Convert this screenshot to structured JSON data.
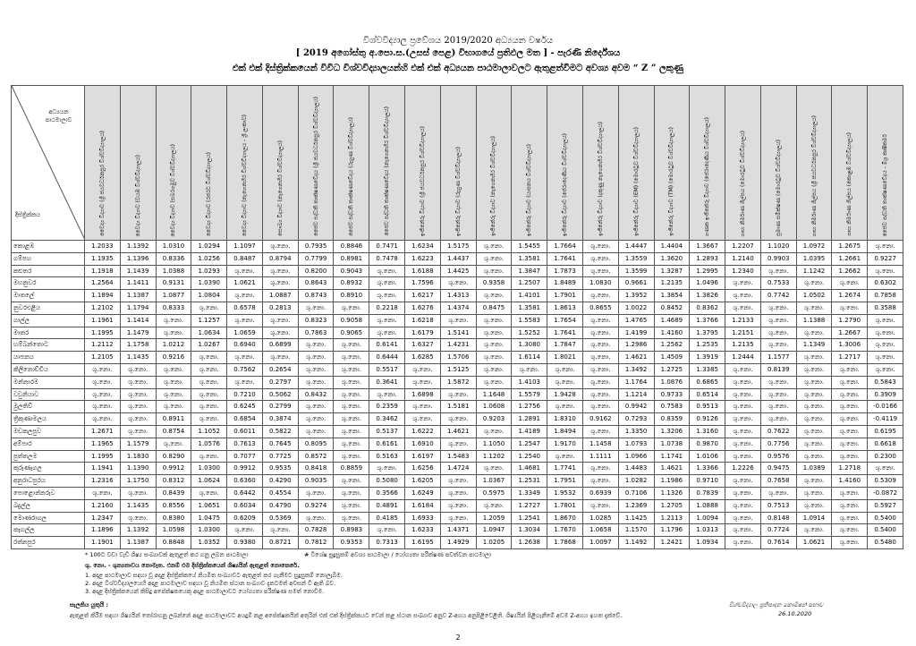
{
  "header": {
    "title": "විශ්වවිද්‍යාල ප්‍රවේශය 2019/2020 අධ්‍යයන වර්ෂය",
    "subtitle": "[ 2019 අගෝස්තු අ.පො.ස.(උසස් පෙළ) විභාගයේ ප්‍රතිඵල මත ] - පැරණි නිර්දේශය",
    "heading": "එක් එක් දිස්ත්‍රික්කයෙන් විවිධ විශ්වවිද්‍යාලයන්හි එක් එක් අධ්‍යයන පාඨමාලාවලට ඇතුළත්වීමට අවශ්‍ය අවම “ Z ” ලකුණු"
  },
  "table": {
    "corner": {
      "course": "අධ්‍යයන පාඨමාලාව",
      "district": "දිස්ත්‍රික්කය"
    },
    "columns": [
      "වෛද්‍ය විද්‍යාව (ශ්‍රී ජයවර්ධනපුර විශ්වවිද්‍යාලය)",
      "වෛද්‍ය විද්‍යාව (වයඹ විශ්වවිද්‍යාලය)",
      "වෛද්‍ය විද්‍යාව (සබරගමුව විශ්වවිද්‍යාලය)",
      "වෛද්‍ය විද්‍යාව (රජරට විශ්වවිද්‍යාලය)",
      "වෛද්‍ය විද්‍යාව (නැගෙනහිර විශ්වවිද්‍යාලය - ශ්‍රී ලංකාව)",
      "සෞඛ්‍ය විද්‍යාව (නැගෙනහිර විශ්වවිද්‍යාලය)",
      "ජෛව පද්ධති තාක්ෂණවේදය (ශ්‍රී ජයවර්ධනපුර විශ්වවිද්‍යාලය)",
      "ජෛව පද්ධති තාක්ෂණවේදය (රුහුණ විශ්වවිද්‍යාලය)",
      "ජෛව පද්ධති තාක්ෂණවේදය (නැගෙනහිර විශ්වවිද්‍යාලය)",
      "ඉංජිනේරු විද්‍යාව (ශ්‍රී ජයවර්ධනපුර විශ්වවිද්‍යාලය)",
      "ඉංජිනේරු විද්‍යාව (රුහුණ විශ්වවිද්‍යාලය)",
      "ඉංජිනේරු විද්‍යාව (නැගෙනහිර විශ්වවිද්‍යාලය)",
      "ඉංජිනේරු විද්‍යාව (යාපනය විශ්වවිද්‍යාලය)",
      "ඉංජිනේරු විද්‍යාව (පේරාදෙණිය විශ්වවිද්‍යාලය)",
      "ඉංජිනේරු විද්‍යාව (දකුණු නැගෙනහිර විශ්වවිද්‍යාලය)",
      "ඉංජිනේරු විද්‍යාව (EM) (මොරටුව විශ්වවිද්‍යාලය)",
      "ඉංජිනේරු විද්‍යාව (TM) (මොරටුව විශ්වවිද්‍යාලය)",
      "ගණක ඉංජිනේරු විද්‍යාව (පේරාදෙණිය විශ්වවිද්‍යාලය)",
      "ගෘහ නිර්මාණ ශිල්පය (මොරටුව විශ්වවිද්‍යාලය)",
      "ප්‍රමාණ සමීක්ෂණ (මොරටුව විශ්වවිද්‍යාලය)",
      "ගෘහ නිර්මාණ ශිල්පය (ශ්‍රී ජයවර්ධනපුර විශ්වවිද්‍යාලය)",
      "ගෘහ නිර්මාණ ශිල්පය (කොළඹ විශ්වවිද්‍යාලය)",
      "ජෛව පද්ධති තාක්ෂණවේදය - මිශ්‍ර කෘෂිකර්ම"
    ],
    "rows": [
      {
        "district": "කොළඹ",
        "values": [
          "1.2033",
          "1.1392",
          "1.0310",
          "1.0294",
          "1.1097",
          "ශු.නො.",
          "0.7935",
          "0.8846",
          "0.7471",
          "1.6234",
          "1.5175",
          "ශු.නො.",
          "1.5455",
          "1.7664",
          "ශු.නො.",
          "1.4447",
          "1.4404",
          "1.3667",
          "1.2207",
          "1.1020",
          "1.0972",
          "1.2675",
          "ශු.නො."
        ]
      },
      {
        "district": "ගම්පහ",
        "values": [
          "1.1935",
          "1.1396",
          "0.8336",
          "1.0256",
          "0.8487",
          "0.8794",
          "0.7799",
          "0.8981",
          "0.7478",
          "1.6223",
          "1.4437",
          "ශු.නො.",
          "1.3581",
          "1.7641",
          "ශු.නො.",
          "1.3559",
          "1.3620",
          "1.2893",
          "1.2140",
          "0.9903",
          "1.0395",
          "1.2661",
          "0.9227"
        ]
      },
      {
        "district": "කළුතර",
        "values": [
          "1.1918",
          "1.1439",
          "1.0388",
          "1.0293",
          "ශු.නො.",
          "ශු.නො.",
          "0.8200",
          "0.9043",
          "ශු.නො.",
          "1.6188",
          "1.4425",
          "ශු.නො.",
          "1.3847",
          "1.7873",
          "ශු.නො.",
          "1.3599",
          "1.3287",
          "1.2995",
          "1.2340",
          "ශු.නො.",
          "1.1242",
          "1.2662",
          "ශු.නො."
        ]
      },
      {
        "district": "මහනුවර",
        "values": [
          "1.2564",
          "1.1411",
          "0.9131",
          "1.0390",
          "1.0621",
          "ශු.නො.",
          "0.8643",
          "0.8932",
          "ශු.නො.",
          "1.7596",
          "ශු.නො.",
          "0.9358",
          "1.2507",
          "1.8489",
          "1.0830",
          "0.9661",
          "1.2135",
          "1.0496",
          "ශු.නො.",
          "0.7533",
          "ශු.නො.",
          "ශු.නො.",
          "0.6302"
        ]
      },
      {
        "district": "මාතලේ",
        "values": [
          "1.1894",
          "1.1387",
          "1.0877",
          "1.0804",
          "ශු.නො.",
          "1.0887",
          "0.8743",
          "0.8910",
          "ශු.නො.",
          "1.6217",
          "1.4313",
          "ශු.නො.",
          "1.4101",
          "1.7901",
          "ශු.නො.",
          "1.3952",
          "1.3854",
          "1.3826",
          "ශු.නො.",
          "0.7742",
          "1.0502",
          "1.2674",
          "0.7858"
        ]
      },
      {
        "district": "නුවරඑළිය",
        "values": [
          "1.2102",
          "1.1794",
          "0.8333",
          "ශු.නො.",
          "0.6578",
          "0.2813",
          "ශු.නො.",
          "ශු.නො.",
          "0.2218",
          "1.6276",
          "1.4374",
          "0.8475",
          "1.3581",
          "1.8613",
          "0.8655",
          "1.0022",
          "0.8452",
          "0.8362",
          "ශු.නො.",
          "ශු.නො.",
          "ශු.නො.",
          "ශු.නො.",
          "0.3588"
        ]
      },
      {
        "district": "ගාල්ල",
        "values": [
          "1.1961",
          "1.1414",
          "ශු.නො.",
          "1.1257",
          "ශු.නො.",
          "ශු.නො.",
          "0.8323",
          "0.9058",
          "ශු.නො.",
          "1.6218",
          "ශු.නො.",
          "ශු.නො.",
          "1.5583",
          "1.7654",
          "ශු.නො.",
          "1.4765",
          "1.4689",
          "1.3766",
          "1.2133",
          "ශු.නො.",
          "1.1388",
          "1.2790",
          "ශු.නො."
        ]
      },
      {
        "district": "මාතර",
        "values": [
          "1.1995",
          "1.1479",
          "ශු.නො.",
          "1.0634",
          "1.0659",
          "ශු.නො.",
          "0.7863",
          "0.9065",
          "ශු.නො.",
          "1.6179",
          "1.5141",
          "ශු.නො.",
          "1.5252",
          "1.7641",
          "ශු.නො.",
          "1.4199",
          "1.4160",
          "1.3795",
          "1.2151",
          "ශු.නො.",
          "ශු.නො.",
          "1.2667",
          "ශු.නො."
        ]
      },
      {
        "district": "හම්බන්තොට",
        "values": [
          "1.2112",
          "1.1758",
          "1.0212",
          "1.0267",
          "0.6940",
          "0.6899",
          "ශු.නො.",
          "ශු.නො.",
          "0.6141",
          "1.6327",
          "1.4231",
          "ශු.නො.",
          "1.3080",
          "1.7847",
          "ශු.නො.",
          "1.2986",
          "1.2562",
          "1.2535",
          "1.2135",
          "ශු.නො.",
          "1.1349",
          "1.3006",
          "ශු.නො."
        ]
      },
      {
        "district": "යාපනය",
        "values": [
          "1.2105",
          "1.1435",
          "0.9216",
          "ශු.නො.",
          "ශු.නො.",
          "ශු.නො.",
          "ශු.නො.",
          "ශු.නො.",
          "0.6444",
          "1.6285",
          "1.5706",
          "ශු.නො.",
          "1.6114",
          "1.8021",
          "ශු.නො.",
          "1.4621",
          "1.4509",
          "1.3919",
          "1.2444",
          "1.1577",
          "ශු.නො.",
          "1.2717",
          "ශු.නො."
        ]
      },
      {
        "district": "කිලිනොච්චිය",
        "values": [
          "ශු.නො.",
          "ශු.නො.",
          "ශු.නො.",
          "ශු.නො.",
          "0.7562",
          "0.2654",
          "ශු.නො.",
          "ශු.නො.",
          "0.5517",
          "ශු.නො.",
          "1.5125",
          "ශු.නො.",
          "ශු.නො.",
          "ශු.නො.",
          "ශු.නො.",
          "1.3492",
          "1.2725",
          "1.3385",
          "ශු.නො.",
          "0.8139",
          "ශු.නො.",
          "ශු.නො.",
          "ශු.නො."
        ]
      },
      {
        "district": "මන්නාරම",
        "values": [
          "ශු.නො.",
          "ශු.නො.",
          "ශු.නො.",
          "ශු.නො.",
          "ශු.නො.",
          "0.2797",
          "ශු.නො.",
          "ශු.නො.",
          "0.3641",
          "ශු.නො.",
          "1.5872",
          "ශු.නො.",
          "1.4103",
          "ශු.නො.",
          "ශු.නො.",
          "1.1764",
          "1.0876",
          "0.6865",
          "ශු.නො.",
          "ශු.නො.",
          "ශු.නො.",
          "ශු.නො.",
          "0.5843"
        ]
      },
      {
        "district": "වවුනියාව",
        "values": [
          "ශු.නො.",
          "ශු.නො.",
          "ශු.නො.",
          "ශු.නො.",
          "0.7210",
          "0.5062",
          "0.8432",
          "ශු.නො.",
          "ශු.නො.",
          "1.6898",
          "ශු.නො.",
          "1.1648",
          "1.5579",
          "1.9428",
          "ශු.නො.",
          "1.1214",
          "0.9733",
          "0.6514",
          "ශු.නො.",
          "ශු.නො.",
          "ශු.නො.",
          "ශු.නො.",
          "0.3909"
        ]
      },
      {
        "district": "මුලතිව්",
        "values": [
          "ශු.නො.",
          "ශු.නො.",
          "ශු.නො.",
          "ශු.නො.",
          "0.6245",
          "0.2799",
          "ශු.නො.",
          "ශු.නො.",
          "0.2359",
          "ශු.නො.",
          "1.5181",
          "1.0608",
          "1.2756",
          "ශු.නො.",
          "ශු.නො.",
          "0.9942",
          "0.7583",
          "0.9513",
          "ශු.නො.",
          "ශු.නො.",
          "ශු.නො.",
          "ශු.නො.",
          "-0.0166"
        ]
      },
      {
        "district": "ත්‍රිකුණාමලය",
        "values": [
          "ශු.නො.",
          "ශු.නො.",
          "0.8911",
          "ශු.නො.",
          "0.6854",
          "0.3874",
          "ශු.නො.",
          "ශු.නො.",
          "0.3462",
          "ශු.නො.",
          "ශු.නො.",
          "0.9203",
          "1.2891",
          "1.8310",
          "0.9162",
          "0.7293",
          "0.8359",
          "0.9126",
          "ශු.නො.",
          "ශු.නො.",
          "ශු.නො.",
          "ශු.නො.",
          "-0.4119"
        ]
      },
      {
        "district": "මඩකලපුව",
        "values": [
          "1.2671",
          "ශු.නො.",
          "0.8754",
          "1.1052",
          "0.6011",
          "0.5822",
          "ශු.නො.",
          "ශු.නො.",
          "0.5137",
          "1.6222",
          "1.4621",
          "ශු.නො.",
          "1.4189",
          "1.8494",
          "ශු.නො.",
          "1.3350",
          "1.3206",
          "1.3160",
          "ශු.නො.",
          "0.7622",
          "ශු.නො.",
          "ශු.නො.",
          "0.6195"
        ]
      },
      {
        "district": "අම්පාර",
        "values": [
          "1.1965",
          "1.1579",
          "ශු.නො.",
          "1.0576",
          "0.7613",
          "0.7645",
          "0.8095",
          "ශු.නො.",
          "0.6161",
          "1.6910",
          "ශු.නො.",
          "1.1050",
          "1.2547",
          "1.9170",
          "1.1458",
          "1.0793",
          "1.0738",
          "0.9870",
          "ශු.නො.",
          "0.7756",
          "ශු.නො.",
          "ශු.නො.",
          "0.6618"
        ]
      },
      {
        "district": "පුත්තලම",
        "values": [
          "1.1995",
          "1.1830",
          "0.8290",
          "ශු.නො.",
          "0.7077",
          "0.7725",
          "0.8572",
          "ශු.නො.",
          "0.5163",
          "1.6197",
          "1.5483",
          "1.1202",
          "1.2540",
          "ශු.නො.",
          "1.1111",
          "1.0966",
          "1.1741",
          "1.0106",
          "ශු.නො.",
          "0.9576",
          "ශු.නො.",
          "ශු.නො.",
          "0.2300"
        ]
      },
      {
        "district": "කුරුණෑගල",
        "values": [
          "1.1941",
          "1.1390",
          "0.9912",
          "1.0300",
          "0.9912",
          "0.9535",
          "0.8418",
          "0.8859",
          "ශු.නො.",
          "1.6256",
          "1.4724",
          "ශු.නො.",
          "1.4681",
          "1.7741",
          "ශු.නො.",
          "1.4483",
          "1.4621",
          "1.3366",
          "1.2226",
          "0.9475",
          "1.0389",
          "1.2718",
          "ශු.නො."
        ]
      },
      {
        "district": "අනුරාධපුරය",
        "values": [
          "1.2316",
          "1.1750",
          "0.8312",
          "1.0624",
          "0.6360",
          "0.4290",
          "0.9035",
          "ශු.නො.",
          "0.5080",
          "1.6205",
          "ශු.නො.",
          "1.0367",
          "1.2531",
          "1.7951",
          "ශු.නො.",
          "1.0282",
          "1.1986",
          "0.9710",
          "ශු.නො.",
          "0.7658",
          "ශු.නො.",
          "1.4160",
          "0.5309"
        ]
      },
      {
        "district": "පොළොන්නරුව",
        "values": [
          "ශු.නො.",
          "ශු.නො.",
          "0.8439",
          "ශු.නො.",
          "0.6442",
          "0.4554",
          "ශු.නො.",
          "ශු.නො.",
          "0.3566",
          "1.6249",
          "ශු.නො.",
          "0.5975",
          "1.3349",
          "1.9532",
          "0.6939",
          "0.7106",
          "1.1326",
          "0.7839",
          "ශු.නො.",
          "ශු.නො.",
          "ශු.නො.",
          "ශු.නො.",
          "-0.0872"
        ]
      },
      {
        "district": "බදුල්ල",
        "values": [
          "1.2160",
          "1.1435",
          "0.8556",
          "1.0651",
          "0.6034",
          "0.4790",
          "0.9274",
          "ශු.නො.",
          "0.4891",
          "1.6184",
          "ශු.නො.",
          "ශු.නො.",
          "1.2727",
          "1.7801",
          "ශු.නො.",
          "1.2369",
          "1.2705",
          "1.0888",
          "ශු.නො.",
          "0.7513",
          "ශු.නො.",
          "ශු.නො.",
          "0.5927"
        ]
      },
      {
        "district": "මොණරාගල",
        "values": [
          "1.2347",
          "ශු.නො.",
          "0.8380",
          "1.0475",
          "0.6209",
          "0.5369",
          "ශු.නො.",
          "ශු.නො.",
          "0.4185",
          "1.6933",
          "ශු.නො.",
          "1.2059",
          "1.2541",
          "1.8670",
          "1.0285",
          "1.1425",
          "1.2113",
          "1.0094",
          "ශු.නො.",
          "0.8148",
          "1.0914",
          "ශු.නො.",
          "0.5400"
        ]
      },
      {
        "district": "කෑගල්ල",
        "values": [
          "1.1896",
          "1.1392",
          "1.0598",
          "1.0300",
          "ශු.නො.",
          "ශු.නො.",
          "0.7828",
          "0.8983",
          "ශු.නො.",
          "1.6233",
          "1.4371",
          "1.0947",
          "1.3034",
          "1.7670",
          "1.0658",
          "1.1570",
          "1.1796",
          "1.0313",
          "ශු.නො.",
          "0.7724",
          "ශු.නො.",
          "ශු.නො.",
          "0.5400"
        ]
      },
      {
        "district": "රත්නපුර",
        "values": [
          "1.1901",
          "1.1387",
          "0.8848",
          "1.0352",
          "0.9380",
          "0.8721",
          "0.7812",
          "0.9353",
          "0.7313",
          "1.6195",
          "1.4929",
          "1.0205",
          "1.2638",
          "1.7868",
          "1.0097",
          "1.1492",
          "1.2421",
          "1.0934",
          "ශු.නො.",
          "0.7614",
          "1.0621",
          "ශු.නො.",
          "0.5480"
        ]
      }
    ]
  },
  "footnotes": {
    "star": "* 100ට වඩා වැඩි ශිෂ්‍ය සංඛ්‍යාවක් ඇතුළත් කර ගනු ලබන පාඨමාලා",
    "hash": "# විශේෂ සුදුසුකම් අවශ්‍ය පාඨමාලා / යෝග්‍යතා පරීක්ෂණ පවත්වන පාඨමාලා",
    "legend": "ශු. නො. - ශුන්‍යතාවය නොමැත. එනම් එම දිස්ත්‍රික්කයෙන් ශිෂ්‍යයින් ඇතුළත් නොකෙරේ.",
    "notes": [
      "1.   අදාළ පාඨමාලාව සඳහා වූ අදාළ දිස්ත්‍රික්කයේ නියමිත සංඛ්‍යාවට ඇතුළත් කර ගැනීමට සුදුසුකම් නොලැබීම.",
      "2.   අදාළ විශ්වවිද්‍යාලයෙහි අදාළ පාඨමාලාව සඳහා වූ නියමිත ස්ථාන සංඛ්‍යාව දැනටමත් අවසන් වී ඇති බව.",
      "3.   අදාළ දිස්ත්‍රික්කයෙන් කිසිදු අපේක්ෂකයෙකු අදාළ පාඨමාලාවට යෝග්‍යතා පරීක්ෂණ සමත් නොවීම."
    ]
  },
  "remarks": {
    "title": "සැලකිය යුතුයි :",
    "text": "ඇතුළත් කිරීම සඳහා ශිෂ්‍යයින් තෝරාගනු ලබන්නේ අදාළ පාඨමාලාවට අයදුම් කළ අපේක්ෂකයින් අතුරින් එක් එක් දිස්ත්‍රික්කයට වෙන් කළ ස්ථාන සංඛ්‍යාව අනුව Z-අගය අනුපිළිවෙළිනි. ශිෂ්‍යයින් පිළිගැනීමේ අවම Z-අගය ඉහත දැක්වේ."
  },
  "signature": {
    "name": "විශ්වවිද්‍යාල ප්‍රතිපාදන කොමිෂන් සභාව",
    "date": "26.10.2020"
  },
  "page_number": "2"
}
